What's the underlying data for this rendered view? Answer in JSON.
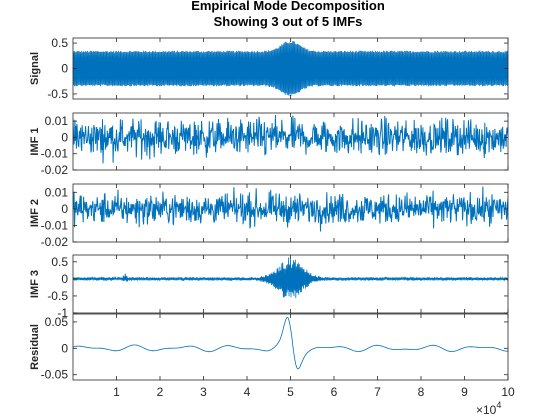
{
  "title_line1": "Empirical Mode Decomposition",
  "title_line2": "Showing 3 out of 5 IMFs",
  "x_exponent_base": "×10",
  "x_exponent_power": "4",
  "chart_data": {
    "type": "line",
    "color": "#0072BD",
    "xlim": [
      0,
      100000
    ],
    "x_tick_values": [
      10000,
      20000,
      30000,
      40000,
      50000,
      60000,
      70000,
      80000,
      90000,
      100000
    ],
    "x_tick_labels": [
      "1",
      "2",
      "3",
      "4",
      "5",
      "6",
      "7",
      "8",
      "9",
      "10"
    ],
    "x_scale_note": "×10^4",
    "panels": [
      {
        "ylabel": "Signal",
        "ylim": [
          -0.6,
          0.6
        ],
        "yticks": [
          -0.5,
          0,
          0.5
        ],
        "ytick_labels": [
          "-0.5",
          "0",
          "0.5"
        ],
        "description": "dense oscillation with envelope ~±0.35, peaking near ±0.55 around x≈50000",
        "envelope_base": 0.35,
        "envelope_peak": 0.55,
        "burst_center": 50000
      },
      {
        "ylabel": "IMF 1",
        "ylim": [
          -0.02,
          0.015
        ],
        "yticks": [
          -0.02,
          -0.01,
          0,
          0.01
        ],
        "ytick_labels": [
          "-0.02",
          "-0.01",
          "0",
          "0.01"
        ],
        "description": "broadband noise, amplitude ~±0.012",
        "envelope_base": 0.012
      },
      {
        "ylabel": "IMF 2",
        "ylim": [
          -0.02,
          0.015
        ],
        "yticks": [
          -0.02,
          -0.01,
          0,
          0.01
        ],
        "ytick_labels": [
          "-0.02",
          "-0.01",
          "0",
          "0.01"
        ],
        "description": "broadband noise, amplitude ~±0.01",
        "envelope_base": 0.01
      },
      {
        "ylabel": "IMF 3",
        "ylim": [
          -1,
          0.7
        ],
        "yticks": [
          -1,
          -0.5,
          0,
          0.5
        ],
        "ytick_labels": [
          "-1",
          "-0.5",
          "0",
          "0.5"
        ],
        "description": "small oscillation ~±0.05 with burst to ~±0.6 centered at x≈50000",
        "envelope_base": 0.05,
        "envelope_peak": 0.6,
        "burst_center": 50000
      },
      {
        "ylabel": "Residual",
        "ylim": [
          -0.06,
          0.065
        ],
        "yticks": [
          -0.05,
          0,
          0.05
        ],
        "ytick_labels": [
          "-0.05",
          "0",
          "0.05"
        ],
        "description": "slow oscillation ~±0.01, large wiggles near x≈50000 reaching +0.06 and -0.055",
        "envelope_base": 0.008,
        "envelope_peak": 0.06,
        "burst_center": 50000
      }
    ]
  }
}
